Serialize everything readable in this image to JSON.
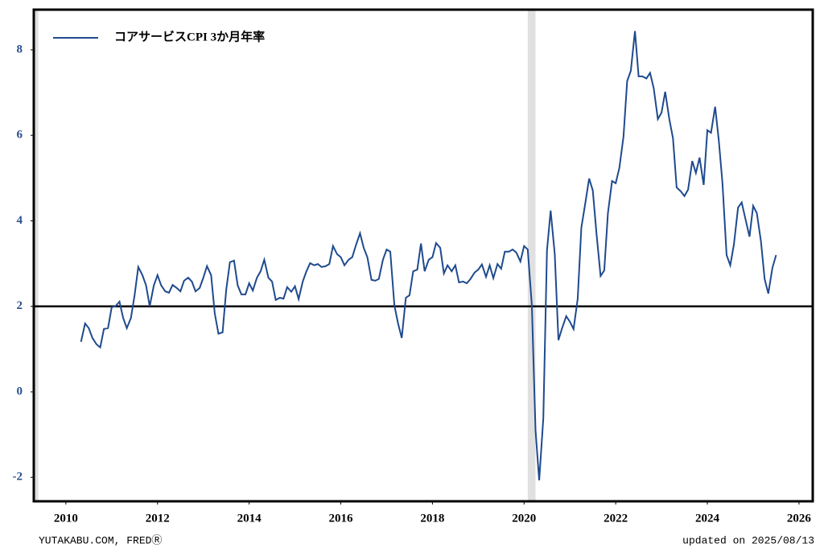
{
  "chart_data": {
    "type": "line",
    "legend_text": "コアサービスCPI 3か月年率",
    "footer_left": "YUTAKABU.COM, FREDⓇ",
    "footer_right": "updated on 2025/08/13",
    "xlim": [
      2009.3,
      2026.3
    ],
    "xticks": [
      2010,
      2012,
      2014,
      2016,
      2018,
      2020,
      2022,
      2024,
      2026
    ],
    "ylim": [
      -2.56,
      8.94
    ],
    "yticks": [
      -2,
      0,
      2,
      4,
      6,
      8
    ],
    "hline": 2,
    "shaded_ranges": [
      [
        2009.3,
        2009.4
      ],
      [
        2020.08,
        2020.25
      ]
    ],
    "legend": "upper left",
    "x": [
      2010.33,
      2010.42,
      2010.5,
      2010.58,
      2010.67,
      2010.75,
      2010.83,
      2010.92,
      2011,
      2011.08,
      2011.17,
      2011.25,
      2011.33,
      2011.42,
      2011.5,
      2011.58,
      2011.67,
      2011.75,
      2011.83,
      2011.92,
      2012,
      2012.08,
      2012.17,
      2012.25,
      2012.33,
      2012.42,
      2012.5,
      2012.58,
      2012.67,
      2012.75,
      2012.83,
      2012.92,
      2013,
      2013.08,
      2013.17,
      2013.25,
      2013.33,
      2013.42,
      2013.5,
      2013.58,
      2013.67,
      2013.75,
      2013.83,
      2013.92,
      2014,
      2014.08,
      2014.17,
      2014.25,
      2014.33,
      2014.42,
      2014.5,
      2014.58,
      2014.67,
      2014.75,
      2014.83,
      2014.92,
      2015,
      2015.08,
      2015.17,
      2015.25,
      2015.33,
      2015.42,
      2015.5,
      2015.58,
      2015.67,
      2015.75,
      2015.83,
      2015.92,
      2016,
      2016.08,
      2016.17,
      2016.25,
      2016.33,
      2016.42,
      2016.5,
      2016.58,
      2016.67,
      2016.75,
      2016.83,
      2016.92,
      2017,
      2017.08,
      2017.17,
      2017.25,
      2017.33,
      2017.42,
      2017.5,
      2017.58,
      2017.67,
      2017.75,
      2017.83,
      2017.92,
      2018,
      2018.08,
      2018.17,
      2018.25,
      2018.33,
      2018.42,
      2018.5,
      2018.58,
      2018.67,
      2018.75,
      2018.83,
      2018.92,
      2019,
      2019.08,
      2019.17,
      2019.25,
      2019.33,
      2019.42,
      2019.5,
      2019.58,
      2019.67,
      2019.75,
      2019.83,
      2019.92,
      2020,
      2020.08,
      2020.17,
      2020.25,
      2020.33,
      2020.42,
      2020.5,
      2020.58,
      2020.67,
      2020.75,
      2020.83,
      2020.92,
      2021,
      2021.08,
      2021.17,
      2021.25,
      2021.33,
      2021.42,
      2021.5,
      2021.58,
      2021.67,
      2021.75,
      2021.83,
      2021.92,
      2022,
      2022.08,
      2022.17,
      2022.25,
      2022.33,
      2022.42,
      2022.5,
      2022.58,
      2022.67,
      2022.75,
      2022.83,
      2022.92,
      2023,
      2023.08,
      2023.17,
      2023.25,
      2023.33,
      2023.42,
      2023.5,
      2023.58,
      2023.67,
      2023.75,
      2023.83,
      2023.92,
      2024,
      2024.08,
      2024.17,
      2024.25,
      2024.33,
      2024.42,
      2024.5,
      2024.58,
      2024.67,
      2024.75,
      2024.83,
      2024.92,
      2025,
      2025.08,
      2025.17,
      2025.25,
      2025.33,
      2025.42,
      2025.5
    ],
    "series": [
      {
        "name": "コアサービスCPI 3か月年率",
        "color": "#1f4a8e",
        "values": [
          1.17,
          1.6,
          1.49,
          1.26,
          1.11,
          1.04,
          1.47,
          1.49,
          1.98,
          2.0,
          2.11,
          1.73,
          1.49,
          1.73,
          2.26,
          2.92,
          2.73,
          2.49,
          2.0,
          2.49,
          2.73,
          2.49,
          2.35,
          2.32,
          2.5,
          2.43,
          2.35,
          2.6,
          2.67,
          2.58,
          2.35,
          2.43,
          2.67,
          2.94,
          2.73,
          1.83,
          1.36,
          1.39,
          2.39,
          3.03,
          3.07,
          2.49,
          2.28,
          2.28,
          2.54,
          2.37,
          2.67,
          2.82,
          3.09,
          2.67,
          2.58,
          2.15,
          2.2,
          2.18,
          2.45,
          2.34,
          2.47,
          2.17,
          2.58,
          2.82,
          3.01,
          2.96,
          2.99,
          2.92,
          2.94,
          2.99,
          3.41,
          3.22,
          3.15,
          2.96,
          3.09,
          3.15,
          3.43,
          3.71,
          3.37,
          3.15,
          2.62,
          2.6,
          2.64,
          3.09,
          3.33,
          3.28,
          2.02,
          1.6,
          1.26,
          2.2,
          2.26,
          2.82,
          2.86,
          3.47,
          2.82,
          3.09,
          3.15,
          3.48,
          3.37,
          2.77,
          2.96,
          2.82,
          2.96,
          2.56,
          2.58,
          2.54,
          2.64,
          2.79,
          2.86,
          2.98,
          2.69,
          2.96,
          2.66,
          2.99,
          2.88,
          3.28,
          3.28,
          3.33,
          3.26,
          3.05,
          3.41,
          3.33,
          2.02,
          -0.9,
          -2.07,
          -0.62,
          3.31,
          4.24,
          3.22,
          1.21,
          1.49,
          1.77,
          1.64,
          1.47,
          2.17,
          3.84,
          4.37,
          4.99,
          4.71,
          3.71,
          2.71,
          2.84,
          4.18,
          4.93,
          4.88,
          5.24,
          5.97,
          7.27,
          7.51,
          8.44,
          7.38,
          7.38,
          7.33,
          7.46,
          7.1,
          6.38,
          6.53,
          7.02,
          6.38,
          5.93,
          4.78,
          4.69,
          4.58,
          4.73,
          5.4,
          5.12,
          5.48,
          4.84,
          6.12,
          6.06,
          6.67,
          5.88,
          4.88,
          3.2,
          2.96,
          3.45,
          4.31,
          4.43,
          4.05,
          3.63,
          4.35,
          4.18,
          3.52,
          2.64,
          2.3,
          2.9,
          3.2
        ]
      }
    ]
  }
}
